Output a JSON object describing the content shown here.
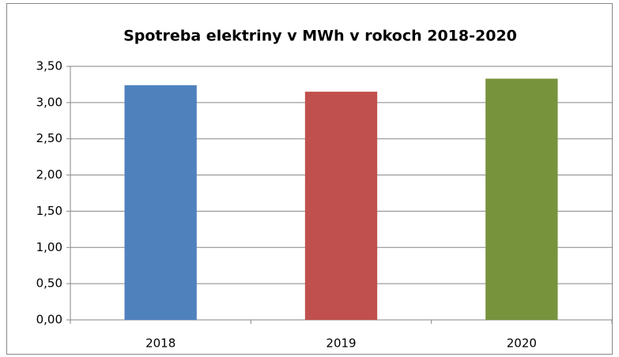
{
  "chart_data": {
    "type": "bar",
    "title": "Spotreba elektriny v MWh v rokoch 2018-2020",
    "categories": [
      "2018",
      "2019",
      "2020"
    ],
    "values": [
      3.24,
      3.15,
      3.33
    ],
    "colors": [
      "#4f81bd",
      "#c0504d",
      "#77933c"
    ],
    "ylim": [
      0,
      3.5
    ],
    "yticks": [
      {
        "value": 0,
        "label": "0,00"
      },
      {
        "value": 0.5,
        "label": "0,50"
      },
      {
        "value": 1,
        "label": "1,00"
      },
      {
        "value": 1.5,
        "label": "1,50"
      },
      {
        "value": 2,
        "label": "2,00"
      },
      {
        "value": 2.5,
        "label": "2,50"
      },
      {
        "value": 3,
        "label": "3,00"
      },
      {
        "value": 3.5,
        "label": "3,50"
      }
    ],
    "grid": true
  }
}
